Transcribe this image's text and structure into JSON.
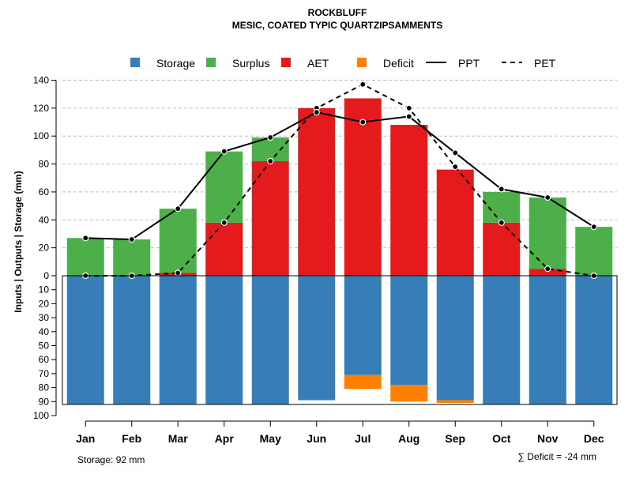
{
  "chart_data": {
    "type": "bar",
    "title": "ROCKBLUFF",
    "subtitle": "MESIC, COATED TYPIC QUARTZIPSAMMENTS",
    "ylabel": "Inputs | Outputs | Storage    (mm)",
    "categories": [
      "Jan",
      "Feb",
      "Mar",
      "Apr",
      "May",
      "Jun",
      "Jul",
      "Aug",
      "Sep",
      "Oct",
      "Nov",
      "Dec"
    ],
    "ylim_top": [
      0,
      140
    ],
    "ylim_bottom": [
      0,
      100
    ],
    "yticks_top": [
      "0",
      "20",
      "40",
      "60",
      "80",
      "100",
      "120",
      "140"
    ],
    "yticks_bottom": [
      "10",
      "20",
      "30",
      "40",
      "50",
      "60",
      "70",
      "80",
      "90",
      "100"
    ],
    "legend": [
      "Storage",
      "Surplus",
      "AET",
      "Deficit",
      "PPT",
      "PET"
    ],
    "colors": {
      "Storage": "#377eb8",
      "Surplus": "#4daf4a",
      "AET": "#e41a1c",
      "Deficit": "#ff7f00",
      "grid": "#bebebe"
    },
    "series": [
      {
        "name": "AET",
        "values": [
          0,
          0,
          2,
          38,
          82,
          120,
          127,
          108,
          76,
          38,
          5,
          0
        ]
      },
      {
        "name": "Surplus",
        "values": [
          27,
          26,
          46,
          51,
          17,
          0,
          0,
          0,
          0,
          22,
          51,
          35
        ]
      },
      {
        "name": "Storage",
        "values": [
          92,
          92,
          92,
          92,
          92,
          89,
          71,
          78,
          89,
          92,
          92,
          92
        ]
      },
      {
        "name": "Deficit",
        "values": [
          0,
          0,
          0,
          0,
          0,
          0,
          10,
          12,
          2,
          0,
          0,
          0
        ]
      },
      {
        "name": "PPT",
        "values": [
          27,
          26,
          48,
          89,
          99,
          117,
          110,
          114,
          88,
          62,
          56,
          35
        ]
      },
      {
        "name": "PET",
        "values": [
          0,
          0,
          2,
          38,
          82,
          120,
          137,
          120,
          78,
          38,
          5,
          0
        ]
      }
    ],
    "storage_capacity": 92,
    "storage_note": "Storage: 92 mm",
    "deficit_note": "∑ Deficit = -24 mm"
  }
}
